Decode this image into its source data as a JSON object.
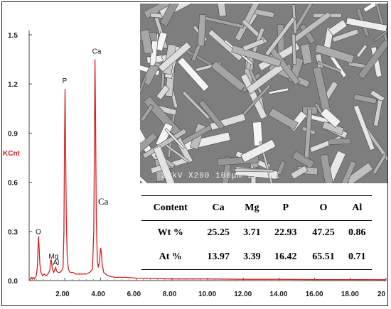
{
  "chart_data": {
    "type": "line",
    "ylabel": "KCnt",
    "xlim": [
      0,
      20
    ],
    "ylim": [
      0,
      1.5
    ],
    "x_ticks": [
      "2.00",
      "4.00",
      "6.00",
      "8.00",
      "10.00",
      "12.00",
      "14.00",
      "16.00",
      "18.00",
      "20"
    ],
    "y_ticks": [
      "0.0",
      "0.3",
      "0.6",
      "0.9",
      "1.2",
      "1.5"
    ],
    "peak_labels": [
      {
        "text": "O",
        "x": 0.52,
        "y": 0.25
      },
      {
        "text": "Mg",
        "x": 1.25,
        "y": 0.1
      },
      {
        "text": "Al",
        "x": 1.49,
        "y": 0.06
      },
      {
        "text": "P",
        "x": 2.01,
        "y": 1.17
      },
      {
        "text": "Ca",
        "x": 3.69,
        "y": 1.35
      }
    ],
    "outside_label": "Ca",
    "series": [
      {
        "color": "#d42020",
        "points": [
          [
            0.0,
            0.0
          ],
          [
            0.05,
            0.005
          ],
          [
            0.12,
            0.02
          ],
          [
            0.18,
            0.01
          ],
          [
            0.22,
            0.02
          ],
          [
            0.3,
            0.01
          ],
          [
            0.4,
            0.03
          ],
          [
            0.46,
            0.08
          ],
          [
            0.5,
            0.2
          ],
          [
            0.52,
            0.27
          ],
          [
            0.55,
            0.22
          ],
          [
            0.6,
            0.1
          ],
          [
            0.66,
            0.05
          ],
          [
            0.75,
            0.03
          ],
          [
            0.85,
            0.04
          ],
          [
            0.95,
            0.03
          ],
          [
            1.05,
            0.04
          ],
          [
            1.15,
            0.06
          ],
          [
            1.22,
            0.13
          ],
          [
            1.25,
            0.12
          ],
          [
            1.3,
            0.07
          ],
          [
            1.38,
            0.05
          ],
          [
            1.45,
            0.07
          ],
          [
            1.49,
            0.08
          ],
          [
            1.53,
            0.06
          ],
          [
            1.62,
            0.05
          ],
          [
            1.72,
            0.05
          ],
          [
            1.82,
            0.06
          ],
          [
            1.9,
            0.08
          ],
          [
            1.95,
            0.3
          ],
          [
            1.98,
            0.8
          ],
          [
            2.01,
            1.17
          ],
          [
            2.04,
            0.85
          ],
          [
            2.08,
            0.4
          ],
          [
            2.13,
            0.15
          ],
          [
            2.2,
            0.07
          ],
          [
            2.3,
            0.05
          ],
          [
            2.45,
            0.05
          ],
          [
            2.6,
            0.04
          ],
          [
            2.8,
            0.04
          ],
          [
            3.0,
            0.04
          ],
          [
            3.2,
            0.04
          ],
          [
            3.4,
            0.05
          ],
          [
            3.55,
            0.07
          ],
          [
            3.62,
            0.3
          ],
          [
            3.66,
            0.9
          ],
          [
            3.69,
            1.35
          ],
          [
            3.72,
            1.0
          ],
          [
            3.76,
            0.4
          ],
          [
            3.82,
            0.12
          ],
          [
            3.88,
            0.08
          ],
          [
            3.95,
            0.12
          ],
          [
            4.0,
            0.2
          ],
          [
            4.04,
            0.18
          ],
          [
            4.09,
            0.1
          ],
          [
            4.18,
            0.05
          ],
          [
            4.4,
            0.03
          ],
          [
            4.8,
            0.02
          ],
          [
            5.4,
            0.02
          ],
          [
            6.0,
            0.015
          ],
          [
            8.0,
            0.01
          ],
          [
            10.0,
            0.01
          ],
          [
            12.0,
            0.008
          ],
          [
            14.0,
            0.008
          ],
          [
            16.0,
            0.006
          ],
          [
            18.0,
            0.006
          ],
          [
            20.0,
            0.005
          ]
        ]
      }
    ]
  },
  "sem_image": {
    "scale_text": "20kV  X200  100μm  27 SEI"
  },
  "composition_table": {
    "headers": [
      "Content",
      "Ca",
      "Mg",
      "P",
      "O",
      "Al"
    ],
    "rows": [
      [
        "Wt %",
        "25.25",
        "3.71",
        "22.93",
        "47.25",
        "0.86"
      ],
      [
        "At %",
        "13.97",
        "3.39",
        "16.42",
        "65.51",
        "0.71"
      ]
    ]
  }
}
